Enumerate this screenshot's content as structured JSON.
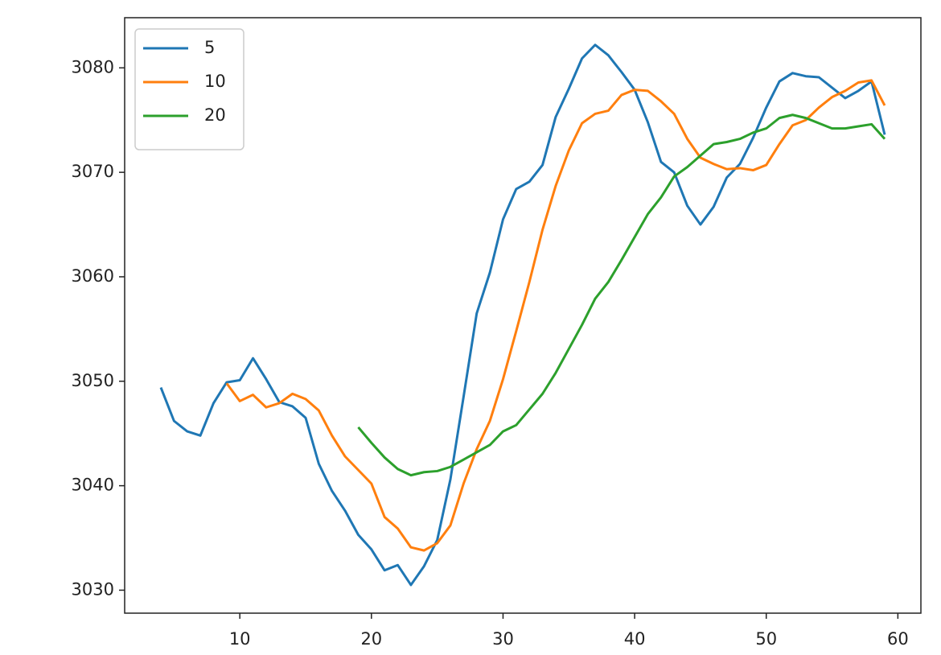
{
  "chart_data": {
    "type": "line",
    "legend": "upper left",
    "xlim": [
      1.25,
      61.75
    ],
    "ylim": [
      3027.8,
      3084.8
    ],
    "xticks": [
      10,
      20,
      30,
      40,
      50,
      60
    ],
    "yticks": [
      3030,
      3040,
      3050,
      3060,
      3070,
      3080
    ],
    "series": [
      {
        "name": "5",
        "color": "#1f77b4",
        "x": [
          4,
          5,
          6,
          7,
          8,
          9,
          10,
          11,
          12,
          13,
          14,
          15,
          16,
          17,
          18,
          19,
          20,
          21,
          22,
          23,
          24,
          25,
          26,
          27,
          28,
          29,
          30,
          31,
          32,
          33,
          34,
          35,
          36,
          37,
          38,
          39,
          40,
          41,
          42,
          43,
          44,
          45,
          46,
          47,
          48,
          49,
          50,
          51,
          52,
          53,
          54,
          55,
          56,
          57,
          58,
          59
        ],
        "values": [
          3049.4,
          3046.2,
          3045.2,
          3044.8,
          3047.9,
          3049.9,
          3050.1,
          3052.2,
          3050.2,
          3048.0,
          3047.6,
          3046.5,
          3042.1,
          3039.5,
          3037.6,
          3035.3,
          3033.9,
          3031.9,
          3032.4,
          3030.5,
          3032.3,
          3034.8,
          3040.6,
          3048.5,
          3056.5,
          3060.4,
          3065.5,
          3068.4,
          3069.1,
          3070.7,
          3075.3,
          3078.0,
          3080.9,
          3082.2,
          3081.2,
          3079.6,
          3077.9,
          3074.8,
          3071.0,
          3070.0,
          3066.8,
          3065.0,
          3066.7,
          3069.5,
          3070.8,
          3073.3,
          3076.2,
          3078.7,
          3079.5,
          3079.2,
          3079.1,
          3078.1,
          3077.1,
          3077.8,
          3078.7,
          3073.6
        ]
      },
      {
        "name": "10",
        "color": "#ff7f0e",
        "x": [
          9,
          10,
          11,
          12,
          13,
          14,
          15,
          16,
          17,
          18,
          19,
          20,
          21,
          22,
          23,
          24,
          25,
          26,
          27,
          28,
          29,
          30,
          31,
          32,
          33,
          34,
          35,
          36,
          37,
          38,
          39,
          40,
          41,
          42,
          43,
          44,
          45,
          46,
          47,
          48,
          49,
          50,
          51,
          52,
          53,
          54,
          55,
          56,
          57,
          58,
          59
        ],
        "values": [
          3049.8,
          3048.1,
          3048.7,
          3047.5,
          3047.9,
          3048.8,
          3048.3,
          3047.2,
          3044.8,
          3042.8,
          3041.5,
          3040.2,
          3037.0,
          3035.9,
          3034.1,
          3033.8,
          3034.5,
          3036.2,
          3040.2,
          3043.5,
          3046.2,
          3050.2,
          3054.8,
          3059.5,
          3064.5,
          3068.7,
          3072.1,
          3074.7,
          3075.6,
          3075.9,
          3077.4,
          3077.9,
          3077.8,
          3076.8,
          3075.6,
          3073.2,
          3071.4,
          3070.8,
          3070.3,
          3070.4,
          3070.2,
          3070.7,
          3072.7,
          3074.5,
          3075.0,
          3076.2,
          3077.2,
          3077.8,
          3078.6,
          3078.8,
          3076.4
        ]
      },
      {
        "name": "20",
        "color": "#2ca02c",
        "x": [
          19,
          20,
          21,
          22,
          23,
          24,
          25,
          26,
          27,
          28,
          29,
          30,
          31,
          32,
          33,
          34,
          35,
          36,
          37,
          38,
          39,
          40,
          41,
          42,
          43,
          44,
          45,
          46,
          47,
          48,
          49,
          50,
          51,
          52,
          53,
          54,
          55,
          56,
          57,
          58,
          59
        ],
        "values": [
          3045.6,
          3044.1,
          3042.7,
          3041.6,
          3041.0,
          3041.3,
          3041.4,
          3041.8,
          3042.5,
          3043.2,
          3043.9,
          3045.2,
          3045.8,
          3047.3,
          3048.8,
          3050.8,
          3053.1,
          3055.4,
          3057.9,
          3059.5,
          3061.6,
          3063.8,
          3066.0,
          3067.6,
          3069.6,
          3070.5,
          3071.6,
          3072.7,
          3072.9,
          3073.2,
          3073.8,
          3074.2,
          3075.2,
          3075.5,
          3075.2,
          3074.7,
          3074.2,
          3074.2,
          3074.4,
          3074.6,
          3073.2
        ]
      }
    ]
  }
}
